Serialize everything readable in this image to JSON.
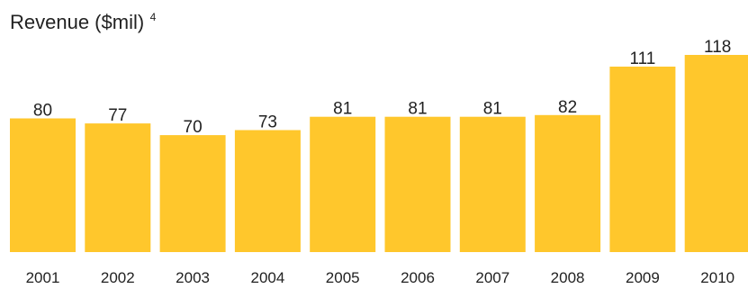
{
  "chart_data": {
    "type": "bar",
    "title": "Revenue ($mil)",
    "title_superscript": "4",
    "xlabel": "",
    "ylabel": "",
    "categories": [
      "2001",
      "2002",
      "2003",
      "2004",
      "2005",
      "2006",
      "2007",
      "2008",
      "2009",
      "2010"
    ],
    "values": [
      80,
      77,
      70,
      73,
      81,
      81,
      81,
      82,
      111,
      118
    ],
    "data_labels": true,
    "grid": false,
    "legend": "none",
    "bar_color": "#FFC72C"
  }
}
